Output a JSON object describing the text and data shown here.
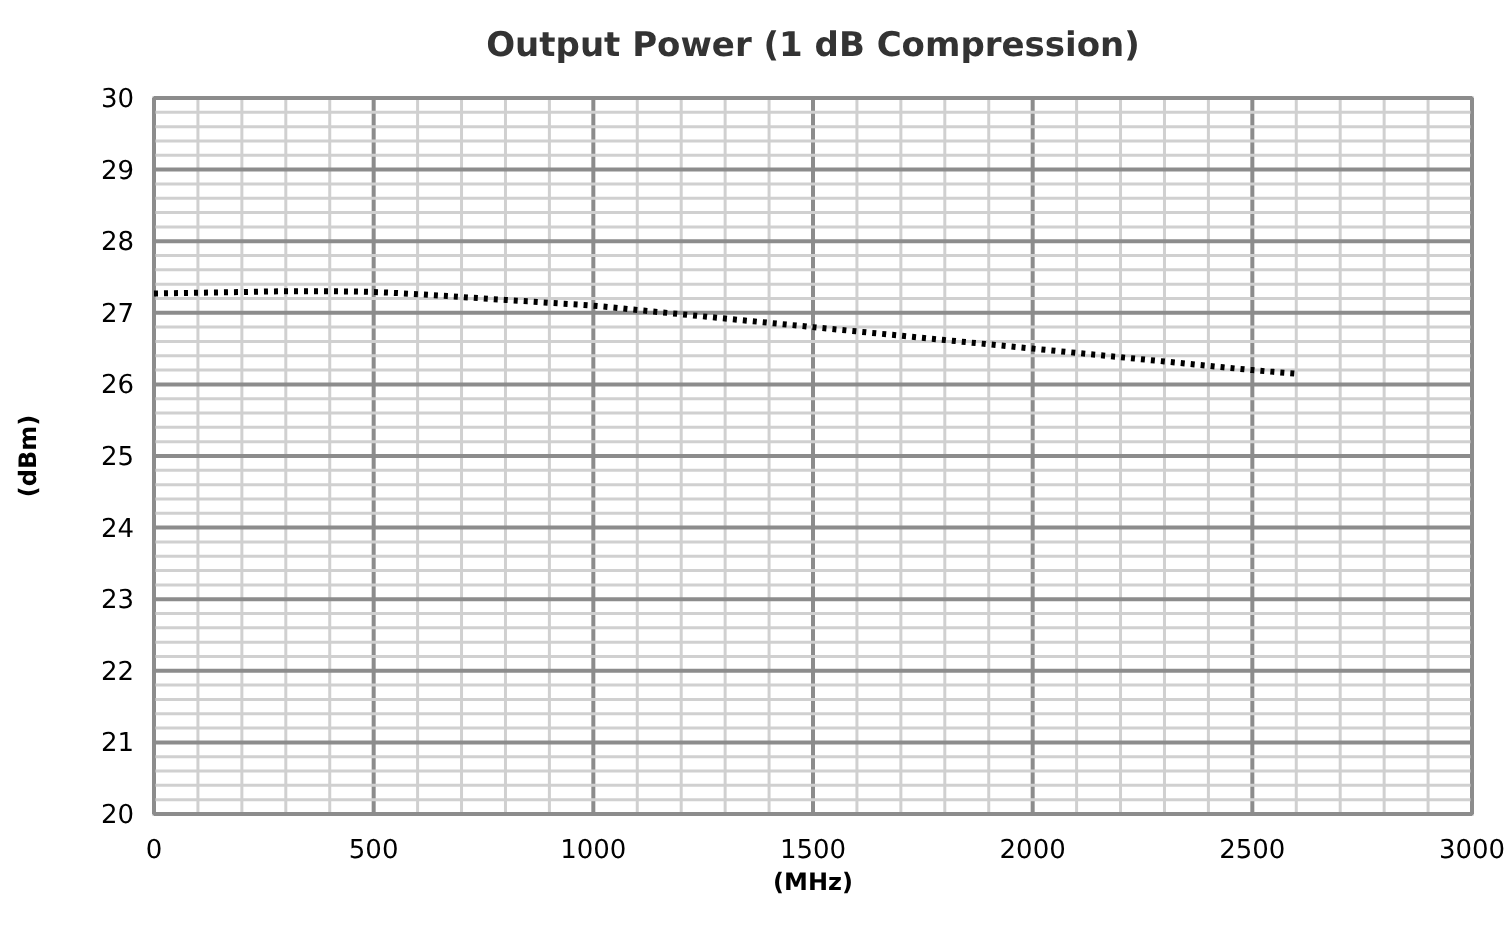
{
  "chart_data": {
    "type": "line",
    "title": "Output Power (1 dB Compression)",
    "xlabel": "(MHz)",
    "ylabel": "(dBm)",
    "x": [
      0,
      100,
      200,
      300,
      400,
      500,
      600,
      700,
      800,
      900,
      1000,
      1100,
      1200,
      1300,
      1400,
      1500,
      1600,
      1700,
      1800,
      1900,
      2000,
      2100,
      2200,
      2300,
      2400,
      2500,
      2600
    ],
    "series": [
      {
        "color": "#000000",
        "values": [
          27.27,
          27.28,
          27.29,
          27.3,
          27.3,
          27.29,
          27.26,
          27.22,
          27.18,
          27.14,
          27.1,
          27.04,
          26.98,
          26.92,
          26.86,
          26.8,
          26.74,
          26.68,
          26.62,
          26.56,
          26.5,
          26.44,
          26.38,
          26.32,
          26.26,
          26.2,
          26.15
        ]
      }
    ],
    "xlim": [
      0,
      3000
    ],
    "ylim": [
      20,
      30
    ],
    "xticks": [
      0,
      {
        "value": 100,
        "label": null
      },
      {
        "value": 200,
        "label": null
      },
      {
        "value": 300,
        "label": null
      },
      {
        "value": 400,
        "label": null
      },
      500,
      {
        "value": 600,
        "label": null
      },
      {
        "value": 700,
        "label": null
      },
      {
        "value": 800,
        "label": null
      },
      {
        "value": 900,
        "label": null
      },
      1000,
      {
        "value": 1100,
        "label": null
      },
      {
        "value": 1200,
        "label": null
      },
      {
        "value": 1300,
        "label": null
      },
      {
        "value": 1400,
        "label": null
      },
      1500,
      {
        "value": 1600,
        "label": null
      },
      {
        "value": 1700,
        "label": null
      },
      {
        "value": 1800,
        "label": null
      },
      {
        "value": 1900,
        "label": null
      },
      2000,
      {
        "value": 2100,
        "label": null
      },
      {
        "value": 2200,
        "label": null
      },
      {
        "value": 2300,
        "label": null
      },
      {
        "value": 2400,
        "label": null
      },
      2500,
      {
        "value": 2600,
        "label": null
      },
      {
        "value": 2700,
        "label": null
      },
      {
        "value": 2800,
        "label": null
      },
      {
        "value": 2900,
        "label": null
      },
      3000
    ],
    "yticks": [
      20,
      {
        "value": 20.2,
        "label": null
      },
      {
        "value": 20.4,
        "label": null
      },
      {
        "value": 20.6,
        "label": null
      },
      {
        "value": 20.8,
        "label": null
      },
      21,
      {
        "value": 21.2,
        "label": null
      },
      {
        "value": 21.4,
        "label": null
      },
      {
        "value": 21.6,
        "label": null
      },
      {
        "value": 21.8,
        "label": null
      },
      22,
      {
        "value": 22.2,
        "label": null
      },
      {
        "value": 22.4,
        "label": null
      },
      {
        "value": 22.6,
        "label": null
      },
      {
        "value": 22.8,
        "label": null
      },
      23,
      {
        "value": 23.2,
        "label": null
      },
      {
        "value": 23.4,
        "label": null
      },
      {
        "value": 23.6,
        "label": null
      },
      {
        "value": 23.8,
        "label": null
      },
      24,
      {
        "value": 24.2,
        "label": null
      },
      {
        "value": 24.4,
        "label": null
      },
      {
        "value": 24.6,
        "label": null
      },
      {
        "value": 24.8,
        "label": null
      },
      25,
      {
        "value": 25.2,
        "label": null
      },
      {
        "value": 25.4,
        "label": null
      },
      {
        "value": 25.6,
        "label": null
      },
      {
        "value": 25.8,
        "label": null
      },
      26,
      {
        "value": 26.2,
        "label": null
      },
      {
        "value": 26.4,
        "label": null
      },
      {
        "value": 26.6,
        "label": null
      },
      {
        "value": 26.8,
        "label": null
      },
      27,
      {
        "value": 27.2,
        "label": null
      },
      {
        "value": 27.4,
        "label": null
      },
      {
        "value": 27.6,
        "label": null
      },
      {
        "value": 27.8,
        "label": null
      },
      28,
      {
        "value": 28.2,
        "label": null
      },
      {
        "value": 28.4,
        "label": null
      },
      {
        "value": 28.6,
        "label": null
      },
      {
        "value": 28.8,
        "label": null
      },
      29,
      {
        "value": 29.2,
        "label": null
      },
      {
        "value": 29.4,
        "label": null
      },
      {
        "value": 29.6,
        "label": null
      },
      {
        "value": 29.8,
        "label": null
      },
      30
    ],
    "grid": true,
    "marker": "none",
    "line_style": "dotted"
  }
}
